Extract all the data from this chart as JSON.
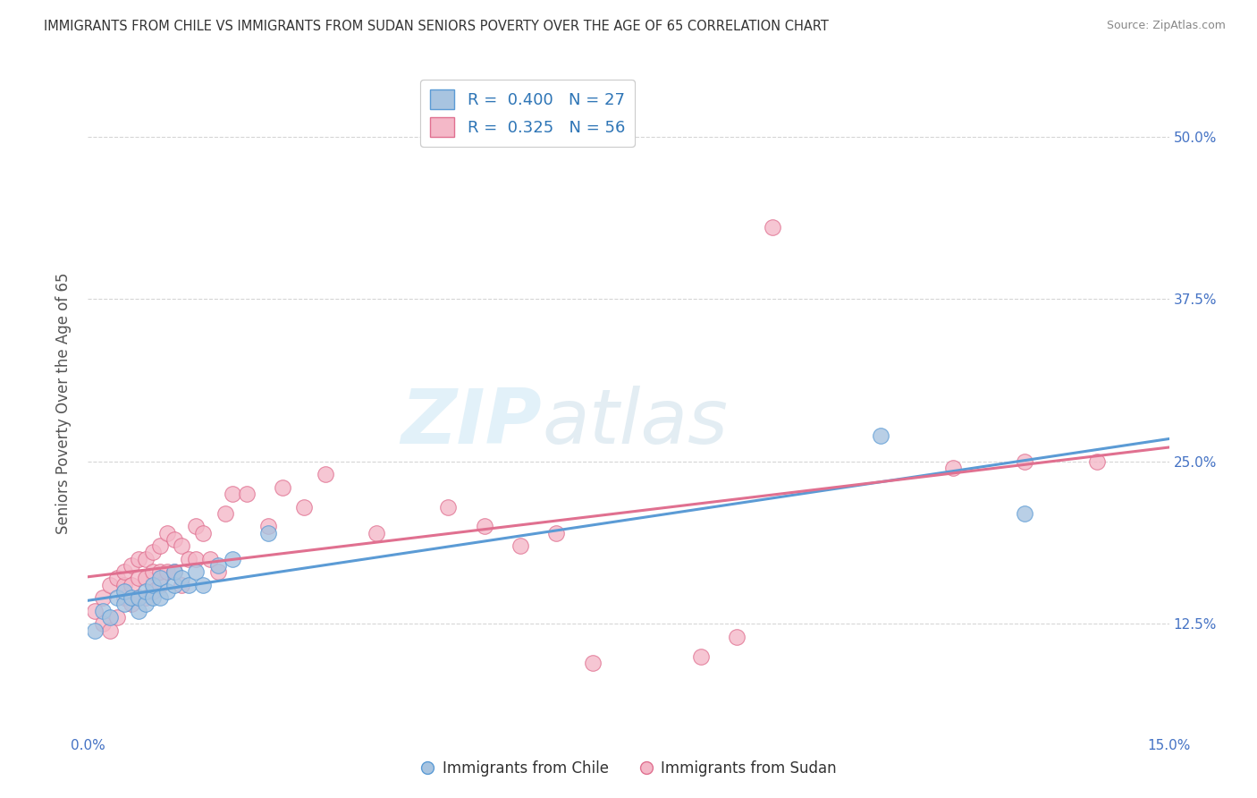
{
  "title": "IMMIGRANTS FROM CHILE VS IMMIGRANTS FROM SUDAN SENIORS POVERTY OVER THE AGE OF 65 CORRELATION CHART",
  "source": "Source: ZipAtlas.com",
  "ylabel": "Seniors Poverty Over the Age of 65",
  "xlim": [
    0.0,
    0.15
  ],
  "ylim": [
    0.04,
    0.55
  ],
  "xtick_positions": [
    0.0,
    0.15
  ],
  "xtick_labels": [
    "0.0%",
    "15.0%"
  ],
  "yticks": [
    0.125,
    0.25,
    0.375,
    0.5
  ],
  "ytick_labels": [
    "12.5%",
    "25.0%",
    "37.5%",
    "50.0%"
  ],
  "chile_color": "#a8c4e0",
  "chile_edge_color": "#5b9bd5",
  "sudan_color": "#f4b8c8",
  "sudan_edge_color": "#e07090",
  "trend_chile_color": "#5b9bd5",
  "trend_sudan_color": "#e07090",
  "R_chile": 0.4,
  "N_chile": 27,
  "R_sudan": 0.325,
  "N_sudan": 56,
  "legend_chile_short": "Immigrants from Chile",
  "legend_sudan_short": "Immigrants from Sudan",
  "watermark_zip": "ZIP",
  "watermark_atlas": "atlas",
  "background_color": "#ffffff",
  "grid_color": "#cccccc",
  "title_color": "#333333",
  "axis_label_color": "#555555",
  "tick_label_color": "#4472C4",
  "chile_x": [
    0.001,
    0.002,
    0.003,
    0.004,
    0.005,
    0.005,
    0.006,
    0.007,
    0.007,
    0.008,
    0.008,
    0.009,
    0.009,
    0.01,
    0.01,
    0.011,
    0.012,
    0.012,
    0.013,
    0.014,
    0.015,
    0.016,
    0.018,
    0.02,
    0.025,
    0.11,
    0.13
  ],
  "chile_y": [
    0.12,
    0.135,
    0.13,
    0.145,
    0.14,
    0.15,
    0.145,
    0.135,
    0.145,
    0.14,
    0.15,
    0.145,
    0.155,
    0.145,
    0.16,
    0.15,
    0.155,
    0.165,
    0.16,
    0.155,
    0.165,
    0.155,
    0.17,
    0.175,
    0.195,
    0.27,
    0.21
  ],
  "sudan_x": [
    0.001,
    0.002,
    0.002,
    0.003,
    0.003,
    0.004,
    0.004,
    0.005,
    0.005,
    0.005,
    0.006,
    0.006,
    0.006,
    0.007,
    0.007,
    0.007,
    0.008,
    0.008,
    0.008,
    0.009,
    0.009,
    0.009,
    0.01,
    0.01,
    0.01,
    0.011,
    0.011,
    0.012,
    0.012,
    0.013,
    0.013,
    0.014,
    0.015,
    0.015,
    0.016,
    0.017,
    0.018,
    0.019,
    0.02,
    0.022,
    0.025,
    0.027,
    0.03,
    0.033,
    0.04,
    0.05,
    0.055,
    0.06,
    0.065,
    0.07,
    0.085,
    0.09,
    0.095,
    0.12,
    0.13,
    0.14
  ],
  "sudan_y": [
    0.135,
    0.125,
    0.145,
    0.12,
    0.155,
    0.13,
    0.16,
    0.145,
    0.155,
    0.165,
    0.14,
    0.155,
    0.17,
    0.145,
    0.16,
    0.175,
    0.145,
    0.16,
    0.175,
    0.15,
    0.165,
    0.18,
    0.155,
    0.165,
    0.185,
    0.165,
    0.195,
    0.165,
    0.19,
    0.155,
    0.185,
    0.175,
    0.175,
    0.2,
    0.195,
    0.175,
    0.165,
    0.21,
    0.225,
    0.225,
    0.2,
    0.23,
    0.215,
    0.24,
    0.195,
    0.215,
    0.2,
    0.185,
    0.195,
    0.095,
    0.1,
    0.115,
    0.43,
    0.245,
    0.25,
    0.25
  ]
}
